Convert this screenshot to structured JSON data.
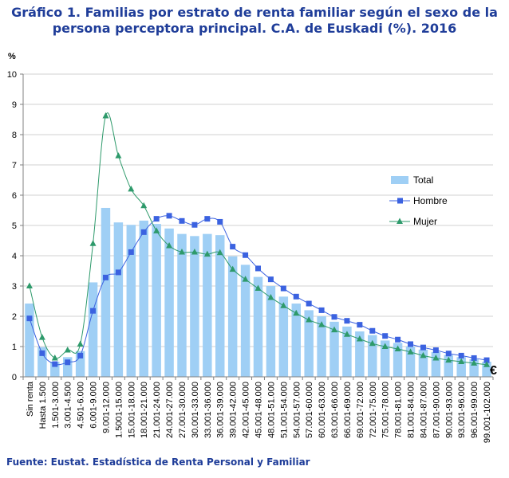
{
  "title_line1": "Gráfico 1. Familias  por estrato de renta familiar  según el sexo de la",
  "title_line2": "persona perceptora principal.  C.A. de Euskadi (%). 2016",
  "footer": "Fuente: Eustat. Estadística de Renta Personal  y Familiar",
  "colors": {
    "total": "#9fcff5",
    "hombre": "#3b62e0",
    "mujer": "#2e9a6b",
    "title": "#1f3d99"
  },
  "chart_data": {
    "type": "bar",
    "title": "Gráfico 1. Familias  por estrato de renta familiar  según el sexo de la persona perceptora principal.  C.A. de Euskadi (%). 2016",
    "ylabel": "%",
    "xunit": "€",
    "ylim": [
      0,
      10
    ],
    "yticks": [
      "0",
      "1",
      "2",
      "3",
      "4",
      "5",
      "6",
      "7",
      "8",
      "9",
      "10"
    ],
    "legend": [
      "Total",
      "Hombre",
      "Mujer"
    ],
    "categories": [
      "Sin renta",
      "Hasta 1.500",
      "1.501-3.000",
      "3.001-4.500",
      "4.501-6.000",
      "6.001-9.000",
      "9.001-12.000",
      "1.5001-15.000",
      "15.001-18.000",
      "18.001-21.000",
      "21.001-24.000",
      "24.001-27.000",
      "27.001-30.000",
      "30.001-33.000",
      "33.001-36.000",
      "36.001-39.000",
      "39.001-42.000",
      "42.001-45.000",
      "45.001-48.000",
      "48.001-51.000",
      "51.001-54.000",
      "54.001-57.000",
      "57.001-60.000",
      "60.001-63.000",
      "63.001-66.000",
      "66.001-69.000",
      "69.001-72.000",
      "72.001-75.000",
      "75.001-78.000",
      "78.001-81.000",
      "81.001-84.000",
      "84.001-87.000",
      "87.001-90.000",
      "90.001-93.000",
      "93.001-96.000",
      "96.001-99.000",
      "99.001-102.000"
    ],
    "series": [
      {
        "name": "Total",
        "type": "bar",
        "values": [
          2.42,
          0.98,
          0.5,
          0.65,
          0.85,
          3.12,
          5.58,
          5.1,
          5.02,
          5.16,
          5.05,
          4.9,
          4.72,
          4.65,
          4.72,
          4.68,
          3.98,
          3.7,
          3.3,
          3.0,
          2.65,
          2.42,
          2.2,
          2.0,
          1.82,
          1.66,
          1.5,
          1.38,
          1.2,
          1.12,
          1.0,
          0.9,
          0.82,
          0.72,
          0.65,
          0.58,
          0.5
        ]
      },
      {
        "name": "Hombre",
        "type": "line",
        "values": [
          1.93,
          0.78,
          0.42,
          0.48,
          0.7,
          2.18,
          3.28,
          3.45,
          4.12,
          4.78,
          5.22,
          5.32,
          5.15,
          5.02,
          5.22,
          5.12,
          4.3,
          4.02,
          3.58,
          3.22,
          2.92,
          2.65,
          2.42,
          2.2,
          1.98,
          1.85,
          1.72,
          1.52,
          1.35,
          1.23,
          1.08,
          0.97,
          0.88,
          0.77,
          0.7,
          0.62,
          0.55
        ]
      },
      {
        "name": "Mujer",
        "type": "line",
        "values": [
          3.0,
          1.3,
          0.62,
          0.88,
          1.08,
          4.4,
          8.62,
          7.3,
          6.2,
          5.65,
          4.82,
          4.33,
          4.12,
          4.12,
          4.05,
          4.1,
          3.55,
          3.22,
          2.92,
          2.62,
          2.35,
          2.1,
          1.88,
          1.72,
          1.55,
          1.4,
          1.25,
          1.1,
          1.0,
          0.92,
          0.82,
          0.7,
          0.62,
          0.55,
          0.5,
          0.45,
          0.4
        ]
      }
    ]
  }
}
